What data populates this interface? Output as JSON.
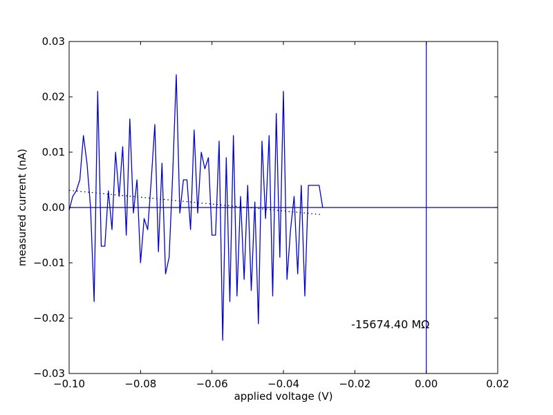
{
  "chart_data": {
    "type": "line",
    "title": "",
    "xlabel": "applied voltage (V)",
    "ylabel": "measured current (nA)",
    "xlim": [
      -0.1,
      0.02
    ],
    "ylim": [
      -0.03,
      0.03
    ],
    "x_ticks": [
      -0.1,
      -0.08,
      -0.06,
      -0.04,
      -0.02,
      0.0,
      0.02
    ],
    "x_tick_labels": [
      "−0.10",
      "−0.08",
      "−0.06",
      "−0.04",
      "−0.02",
      "0.00",
      "0.02"
    ],
    "y_ticks": [
      -0.03,
      -0.02,
      -0.01,
      0.0,
      0.01,
      0.02,
      0.03
    ],
    "y_tick_labels": [
      "−0.03",
      "−0.02",
      "−0.01",
      "0.00",
      "0.01",
      "0.02",
      "0.03"
    ],
    "grid": false,
    "colors": {
      "series": "#0000cc",
      "fit": "#000000",
      "axes_lines": "#0000cc"
    },
    "series": [
      {
        "style": "solid",
        "x": [
          -0.1,
          -0.099,
          -0.098,
          -0.097,
          -0.096,
          -0.095,
          -0.094,
          -0.093,
          -0.092,
          -0.091,
          -0.09,
          -0.089,
          -0.088,
          -0.087,
          -0.086,
          -0.085,
          -0.084,
          -0.083,
          -0.082,
          -0.081,
          -0.08,
          -0.079,
          -0.078,
          -0.077,
          -0.076,
          -0.075,
          -0.074,
          -0.073,
          -0.072,
          -0.071,
          -0.07,
          -0.069,
          -0.068,
          -0.067,
          -0.066,
          -0.065,
          -0.064,
          -0.063,
          -0.062,
          -0.061,
          -0.06,
          -0.059,
          -0.058,
          -0.057,
          -0.056,
          -0.055,
          -0.054,
          -0.053,
          -0.052,
          -0.051,
          -0.05,
          -0.049,
          -0.048,
          -0.047,
          -0.046,
          -0.045,
          -0.044,
          -0.043,
          -0.042,
          -0.041,
          -0.04,
          -0.039,
          -0.038,
          -0.037,
          -0.036,
          -0.035,
          -0.034,
          -0.033,
          -0.032,
          -0.031,
          -0.03,
          -0.029
        ],
        "y": [
          -0.0005,
          0.002,
          0.003,
          0.005,
          0.013,
          0.008,
          0.0,
          -0.017,
          0.021,
          -0.007,
          -0.007,
          0.003,
          -0.004,
          0.01,
          0.002,
          0.011,
          -0.005,
          0.016,
          -0.001,
          0.005,
          -0.01,
          -0.002,
          -0.004,
          0.005,
          0.015,
          -0.008,
          0.008,
          -0.012,
          -0.009,
          0.006,
          0.024,
          -0.001,
          0.005,
          0.005,
          -0.004,
          0.014,
          -0.001,
          0.01,
          0.007,
          0.009,
          -0.005,
          -0.005,
          0.012,
          -0.024,
          0.009,
          -0.017,
          0.013,
          -0.016,
          0.002,
          -0.013,
          0.004,
          -0.015,
          0.001,
          -0.021,
          0.012,
          -0.002,
          0.013,
          -0.016,
          0.017,
          -0.009,
          0.021,
          -0.013,
          -0.004,
          0.002,
          -0.012,
          0.004,
          -0.016,
          0.004,
          0.004,
          0.004,
          0.004,
          0.0
        ]
      },
      {
        "style": "dotted",
        "x": [
          -0.1,
          -0.029
        ],
        "y": [
          0.0031,
          -0.0013
        ]
      }
    ],
    "reference_lines": {
      "horizontal_y": 0.0,
      "vertical_x": 0.0
    },
    "annotations": [
      {
        "text": "-15674.40 MΩ",
        "x": -0.021,
        "y": -0.0218
      }
    ]
  }
}
